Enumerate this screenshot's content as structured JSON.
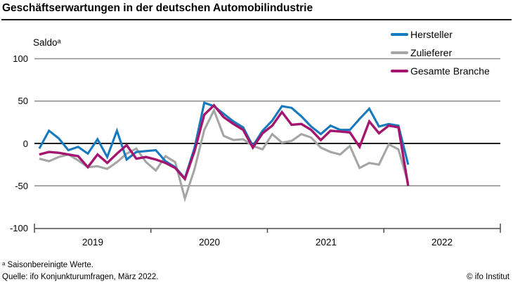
{
  "title": "Geschäftserwartungen in der deutschen Automobilindustrie",
  "y_axis": {
    "label": "Saldoᵃ",
    "ticks": [
      "100",
      "50",
      "0",
      "-50",
      "-100"
    ]
  },
  "x_axis": {
    "ticks": [
      "2019",
      "2020",
      "2021",
      "2022"
    ]
  },
  "legend": [
    {
      "label": "Hersteller",
      "color": "#1779be"
    },
    {
      "label": "Zulieferer",
      "color": "#a5a5a5"
    },
    {
      "label": "Gesamte Branche",
      "color": "#a3156e"
    }
  ],
  "footnotes": {
    "note": "ᵃ Saisonbereinigte Werte.",
    "source": "Quelle: ifo Konjunkturumfragen, März 2022.",
    "copyright": "© ifo Institut"
  },
  "colors": {
    "hersteller": "#1779be",
    "zulieferer": "#a5a5a5",
    "gesamte_branche": "#a3156e",
    "zero_line": "#000000",
    "gridline": "#8c8c8c",
    "axis": "#4d4d4d"
  },
  "chart_data": {
    "type": "line",
    "title": "Geschäftserwartungen in der deutschen Automobilindustrie",
    "ylabel": "Saldoᵃ",
    "ylim": [
      -100,
      100
    ],
    "yticks": [
      100,
      50,
      0,
      -50,
      -100
    ],
    "grid": "horizontal",
    "legend_position": "top-right",
    "x": [
      "2019-01",
      "2019-02",
      "2019-03",
      "2019-04",
      "2019-05",
      "2019-06",
      "2019-07",
      "2019-08",
      "2019-09",
      "2019-10",
      "2019-11",
      "2019-12",
      "2020-01",
      "2020-02",
      "2020-03",
      "2020-04",
      "2020-05",
      "2020-06",
      "2020-07",
      "2020-08",
      "2020-09",
      "2020-10",
      "2020-11",
      "2020-12",
      "2021-01",
      "2021-02",
      "2021-03",
      "2021-04",
      "2021-05",
      "2021-06",
      "2021-07",
      "2021-08",
      "2021-09",
      "2021-10",
      "2021-11",
      "2021-12",
      "2022-01",
      "2022-02",
      "2022-03"
    ],
    "x_year_labels": [
      "2019",
      "2020",
      "2021",
      "2022"
    ],
    "series": [
      {
        "name": "Hersteller",
        "color": "#1779be",
        "values": [
          -6,
          15,
          6,
          -8,
          -4,
          -12,
          5,
          -16,
          15,
          -19,
          -10,
          -9,
          -8,
          -21,
          -28,
          -41,
          -5,
          48,
          44,
          35,
          26,
          19,
          -3,
          15,
          27,
          44,
          42,
          32,
          20,
          11,
          21,
          16,
          16,
          29,
          41,
          20,
          23,
          21,
          -25
        ]
      },
      {
        "name": "Zulieferer",
        "color": "#a5a5a5",
        "values": [
          -18,
          -21,
          -16,
          -13,
          -20,
          -28,
          -27,
          -30,
          -22,
          -12,
          -6,
          -22,
          -32,
          -15,
          -22,
          -65,
          -30,
          16,
          39,
          9,
          4,
          5,
          -3,
          -7,
          11,
          1,
          3,
          11,
          7,
          -5,
          -10,
          -13,
          -3,
          -29,
          -23,
          -25,
          -1,
          -7,
          -47
        ]
      },
      {
        "name": "Gesamte Branche",
        "color": "#a3156e",
        "values": [
          -13,
          -10,
          -11,
          -13,
          -15,
          -28,
          -13,
          -23,
          -12,
          -2,
          -18,
          -16,
          -19,
          -23,
          -29,
          -42,
          -9,
          34,
          45,
          31,
          23,
          16,
          -5,
          12,
          21,
          37,
          22,
          23,
          16,
          4,
          15,
          14,
          13,
          -4,
          26,
          12,
          21,
          19,
          -50
        ]
      }
    ]
  }
}
